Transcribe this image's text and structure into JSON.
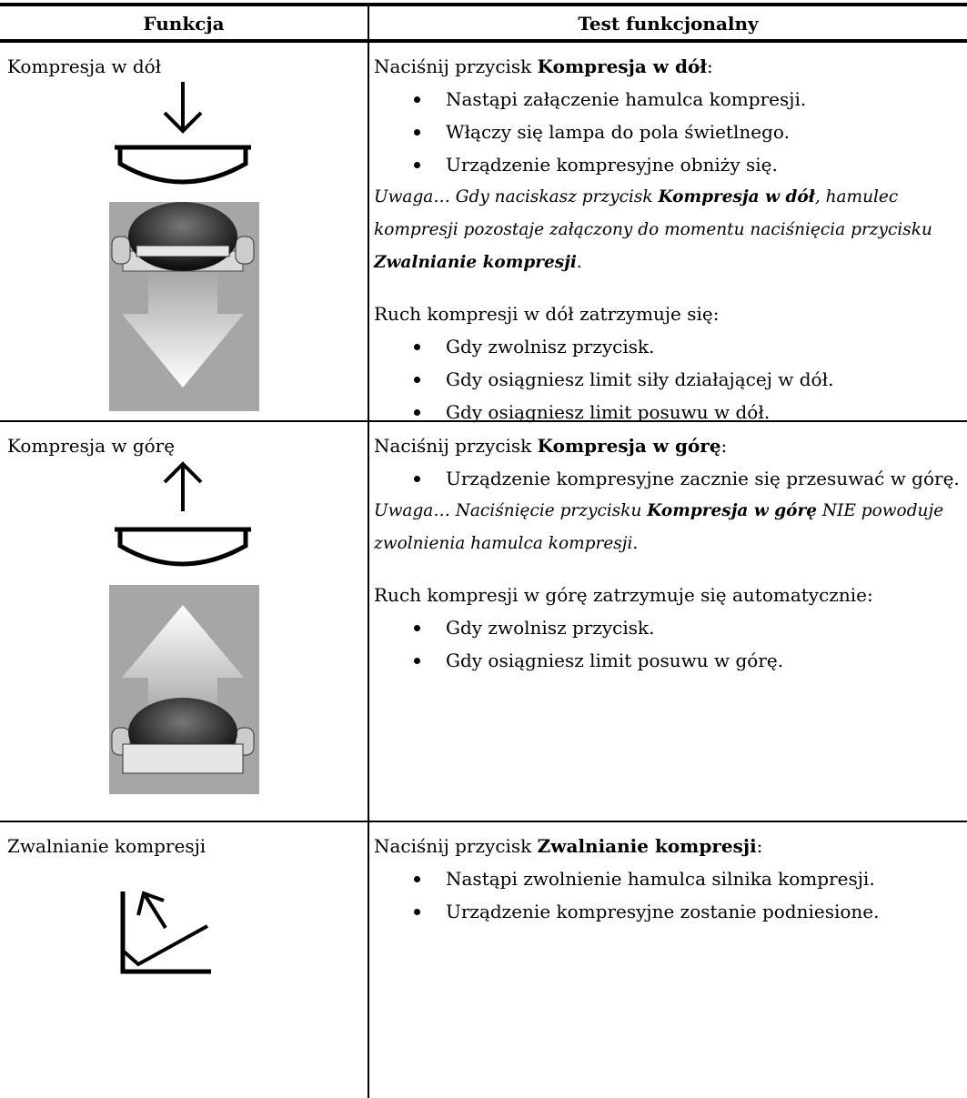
{
  "table": {
    "header": [
      "Funkcja",
      "Test funkcjonalny"
    ],
    "rows": [
      {
        "function": "Kompresja w dół",
        "test": {
          "intro": [
            "Naciśnij przycisk ",
            "Kompresja w dół",
            ":"
          ],
          "bullets": [
            "Nastąpi załączenie hamulca kompresji.",
            "Włączy się lampa do pola świetlnego.",
            "Urządzenie kompresyjne obniży się."
          ],
          "note": [
            "Uwaga… Gdy naciskasz przycisk ",
            "Kompresja w dół",
            ", hamulec kompresji pozostaje załączony do momentu naciśnięcia przycisku ",
            "Zwalnianie kompresji",
            "."
          ],
          "stop_intro": "Ruch kompresji w dół zatrzymuje się:",
          "stop_bullets": [
            "Gdy zwolnisz przycisk.",
            "Gdy osiągniesz limit siły działającej w dół.",
            "Gdy osiągniesz limit posuwu w dół."
          ]
        }
      },
      {
        "function": "Kompresja w górę",
        "test": {
          "intro": [
            "Naciśnij przycisk ",
            "Kompresja w górę",
            ":"
          ],
          "bullets": [
            "Urządzenie kompresyjne zacznie się przesuwać w górę."
          ],
          "note": [
            "Uwaga… Naciśnięcie przycisku ",
            "Kompresja w górę",
            " NIE powoduje zwolnienia hamulca kompresji."
          ],
          "stop_intro": "Ruch kompresji w górę zatrzymuje się automatycznie:",
          "stop_bullets": [
            "Gdy zwolnisz przycisk.",
            "Gdy osiągniesz limit posuwu w górę."
          ]
        }
      },
      {
        "function": "Zwalnianie kompresji",
        "test": {
          "intro": [
            "Naciśnij przycisk ",
            "Zwalnianie kompresji",
            ":"
          ],
          "bullets": [
            "Nastąpi zwolnienie hamulca silnika kompresji.",
            "Urządzenie kompresyjne zostanie podniesione."
          ]
        }
      }
    ]
  }
}
